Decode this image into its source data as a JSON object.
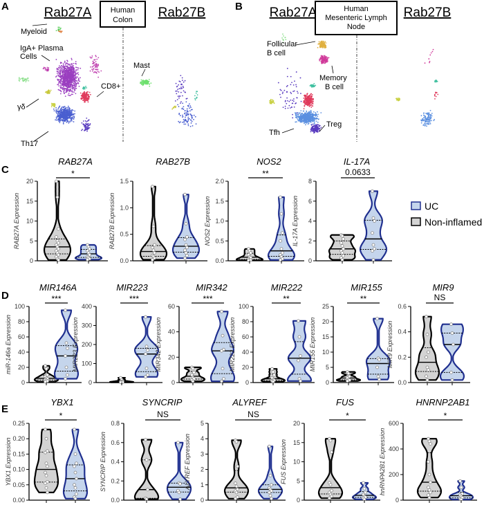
{
  "panel_labels": {
    "a": "A",
    "b": "B",
    "c": "C",
    "d": "D",
    "e": "E"
  },
  "umap": {
    "a": {
      "left_header": "Rab27A",
      "right_header": "Rab27B",
      "box_lines": [
        "Human",
        "Colon"
      ],
      "labels": {
        "myeloid": "Myeloid",
        "plasma_1": "IgA+ Plasma",
        "plasma_2": "Cells",
        "mast": "Mast",
        "cd8": "CD8+",
        "gd": "γδ",
        "th17": "Th17"
      }
    },
    "b": {
      "left_header": "Rab27A",
      "right_header": "Rab27B",
      "box_lines": [
        "Human",
        "Mesenteric Lymph",
        "Node"
      ],
      "labels": {
        "foll_1": "Follicular",
        "foll_2": "B cell",
        "mem_1": "Memory",
        "mem_2": "B cell",
        "tfh": "Tfh",
        "treg": "Treg"
      }
    },
    "cluster_colors": {
      "plasma": "#9b3fc0",
      "th17": "#4a5fd0",
      "cd8": "#e03a5c",
      "myeloid": "#5fcf5f",
      "myeloid_alt": "#e08040",
      "mast": "#6fe06f",
      "gd": "#c8c83a",
      "lightgreen": "#8ee08e",
      "darkpurple": "#5a3cc0",
      "magenta": "#c040b0",
      "teal": "#40c0a0",
      "orange": "#e0b040",
      "memory": "#d03a9a",
      "tfh": "#5a8fe0",
      "treg": "#5a3cc0",
      "yellow": "#c8d040"
    }
  },
  "legend": {
    "items": [
      {
        "label": "UC",
        "fill": "#c5d5ec",
        "stroke": "#1f2f8f"
      },
      {
        "label": "Non-inflamed",
        "fill": "#d3d3d3",
        "stroke": "#000000"
      }
    ]
  },
  "colors": {
    "non_inflamed_fill": "#d3d3d3",
    "non_inflamed_stroke": "#000000",
    "uc_fill": "#c5d5ec",
    "uc_stroke": "#1f2f8f"
  },
  "chart_data": [
    {
      "panel": "C",
      "type": "violin",
      "title": "RAB27A",
      "ylabel": "RAB27A Expression",
      "ylim": [
        0,
        20
      ],
      "ticks": [
        "0",
        "5",
        "10",
        "15",
        "20"
      ],
      "significance": "*",
      "groups": [
        {
          "name": "Non-inflamed",
          "points": [
            20,
            16,
            8,
            6,
            5,
            4.5,
            4,
            3.5,
            3,
            2.5,
            2,
            1.5,
            1,
            0.5,
            0.2
          ]
        },
        {
          "name": "UC",
          "points": [
            4,
            3.5,
            3,
            2.5,
            2,
            1.5,
            1,
            0.8,
            0.5,
            0.3
          ]
        }
      ]
    },
    {
      "panel": "C",
      "type": "violin",
      "title": "RAB27B",
      "ylabel": "RAB27B Expression",
      "ylim": [
        0,
        1.5
      ],
      "ticks": [
        "0.0",
        "0.5",
        "1.0",
        "1.5"
      ],
      "significance": "",
      "groups": [
        {
          "name": "Non-inflamed",
          "points": [
            1.4,
            0.65,
            0.3,
            0.25,
            0.2,
            0.15,
            0.1,
            0.08,
            0.05,
            0.02
          ]
        },
        {
          "name": "UC",
          "points": [
            1.25,
            0.7,
            0.45,
            0.4,
            0.3,
            0.25,
            0.2,
            0.15,
            0.1,
            0.05
          ]
        }
      ]
    },
    {
      "panel": "C",
      "type": "violin",
      "title": "NOS2",
      "ylabel": "NOS2 Expression",
      "ylim": [
        0,
        2
      ],
      "ticks": [
        "0.0",
        "0.5",
        "1.0",
        "1.5",
        "2.0"
      ],
      "significance": "**",
      "groups": [
        {
          "name": "Non-inflamed",
          "points": [
            0.3,
            0.25,
            0.2,
            0.15,
            0.1,
            0.08,
            0.05,
            0.03,
            0.02,
            0.01
          ]
        },
        {
          "name": "UC",
          "points": [
            1.6,
            1.18,
            0.7,
            0.5,
            0.3,
            0.2,
            0.15,
            0.1,
            0.05,
            0.02
          ]
        }
      ]
    },
    {
      "panel": "C",
      "type": "violin",
      "title": "IL-17A",
      "ylabel": "IL-17A Expression",
      "ylim": [
        0,
        8
      ],
      "ticks": [
        "0",
        "2",
        "4",
        "6",
        "8"
      ],
      "significance": "0.0633",
      "groups": [
        {
          "name": "Non-inflamed",
          "points": [
            2.6,
            2.5,
            2.2,
            1.8,
            1.5,
            1.2,
            1,
            0.8,
            0.5,
            0.3,
            0.1
          ]
        },
        {
          "name": "UC",
          "points": [
            7,
            4.3,
            4,
            2.8,
            1.6,
            1.2,
            1,
            0.1
          ]
        }
      ]
    },
    {
      "panel": "D",
      "type": "violin",
      "title": "MIR146A",
      "ylabel": "miR-146a Expression",
      "ylim": [
        0,
        100
      ],
      "ticks": [
        "0",
        "20",
        "40",
        "60",
        "80",
        "100"
      ],
      "significance": "***",
      "groups": [
        {
          "name": "Non-inflamed",
          "points": [
            22,
            18,
            10,
            8,
            6,
            5,
            4,
            3,
            2,
            1
          ]
        },
        {
          "name": "UC",
          "points": [
            95,
            52,
            45,
            35,
            20,
            10,
            5
          ]
        }
      ]
    },
    {
      "panel": "D",
      "type": "violin",
      "title": "MIR223",
      "ylabel": "MIR223 Expression",
      "ylim": [
        0,
        400
      ],
      "ticks": [
        "0",
        "100",
        "200",
        "300",
        "400"
      ],
      "significance": "***",
      "groups": [
        {
          "name": "Non-inflamed",
          "points": [
            25,
            15,
            8,
            5,
            3,
            2,
            1
          ]
        },
        {
          "name": "UC",
          "points": [
            345,
            190,
            170,
            150,
            75,
            40,
            30
          ]
        }
      ]
    },
    {
      "panel": "D",
      "type": "violin",
      "title": "MIR342",
      "ylabel": "MIR342 Expression",
      "ylim": [
        0,
        60
      ],
      "ticks": [
        "0",
        "20",
        "40",
        "60"
      ],
      "significance": "***",
      "groups": [
        {
          "name": "Non-inflamed",
          "points": [
            12,
            11,
            8,
            6,
            4,
            3,
            2,
            1
          ]
        },
        {
          "name": "UC",
          "points": [
            56,
            37,
            26,
            25,
            11,
            3,
            1
          ]
        }
      ]
    },
    {
      "panel": "D",
      "type": "violin",
      "title": "MIR222",
      "ylabel": "MIR222 Expression",
      "ylim": [
        0,
        100
      ],
      "ticks": [
        "0",
        "20",
        "40",
        "60",
        "80",
        "100"
      ],
      "significance": "**",
      "groups": [
        {
          "name": "Non-inflamed",
          "points": [
            18,
            14,
            10,
            6,
            4,
            3,
            2,
            1
          ]
        },
        {
          "name": "UC",
          "points": [
            81,
            60,
            35,
            29,
            5,
            2
          ]
        }
      ]
    },
    {
      "panel": "D",
      "type": "violin",
      "title": "MIR155",
      "ylabel": "MIR155 Expression",
      "ylim": [
        0,
        25
      ],
      "ticks": [
        "0",
        "5",
        "10",
        "15",
        "20",
        "25"
      ],
      "significance": "**",
      "groups": [
        {
          "name": "Non-inflamed",
          "points": [
            3.5,
            3,
            2,
            1.5,
            1,
            0.8,
            0.5
          ]
        },
        {
          "name": "UC",
          "points": [
            21,
            8,
            7.5,
            5,
            2,
            1
          ]
        }
      ]
    },
    {
      "panel": "D",
      "type": "violin",
      "title": "MIR9",
      "ylabel": "MIR9 Expression",
      "ylim": [
        0,
        0.6
      ],
      "ticks": [
        "0.0",
        "0.2",
        "0.4",
        "0.6"
      ],
      "significance": "NS",
      "groups": [
        {
          "name": "Non-inflamed",
          "points": [
            0.52,
            0.38,
            0.24,
            0.2,
            0.12,
            0.1,
            0.05,
            0.02
          ]
        },
        {
          "name": "UC",
          "points": [
            0.46,
            0.39,
            0.3,
            0.08,
            0.02
          ]
        }
      ]
    },
    {
      "panel": "E",
      "type": "violin",
      "title": "YBX1",
      "ylabel": "YBX1 Expression",
      "ylim": [
        0,
        0.25
      ],
      "ticks": [
        "0.00",
        "0.05",
        "0.10",
        "0.15",
        "0.20",
        "0.25"
      ],
      "significance": "*",
      "groups": [
        {
          "name": "Non-inflamed",
          "points": [
            0.23,
            0.2,
            0.16,
            0.155,
            0.12,
            0.11,
            0.09,
            0.08,
            0.06,
            0.055,
            0.04,
            0.025
          ]
        },
        {
          "name": "UC",
          "points": [
            0.23,
            0.15,
            0.12,
            0.11,
            0.09,
            0.07,
            0.05,
            0.04,
            0.02,
            0.01,
            0.005
          ]
        }
      ]
    },
    {
      "panel": "E",
      "type": "violin",
      "title": "SYNCRIP",
      "ylabel": "SYNCRIP Expression",
      "ylim": [
        0,
        0.8
      ],
      "ticks": [
        "0.0",
        "0.2",
        "0.4",
        "0.6",
        "0.8"
      ],
      "significance": "NS",
      "groups": [
        {
          "name": "Non-inflamed",
          "points": [
            0.63,
            0.42,
            0.11,
            0.02,
            0.01
          ]
        },
        {
          "name": "UC",
          "points": [
            0.6,
            0.18,
            0.17,
            0.1,
            0.08,
            0.01
          ]
        }
      ]
    },
    {
      "panel": "E",
      "type": "violin",
      "title": "ALYREF",
      "ylabel": "ALYREF Expression",
      "ylim": [
        0,
        5
      ],
      "ticks": [
        "0",
        "1",
        "2",
        "3",
        "4",
        "5"
      ],
      "significance": "NS",
      "groups": [
        {
          "name": "Non-inflamed",
          "points": [
            3.9,
            3.8,
            2.2,
            1.1,
            0.9,
            0.7,
            0.6,
            0.5,
            0.2,
            0.1
          ]
        },
        {
          "name": "UC",
          "points": [
            3.5,
            1.6,
            1,
            0.8,
            0.7,
            0.6,
            0.5,
            0.3,
            0.1
          ]
        }
      ]
    },
    {
      "panel": "E",
      "type": "violin",
      "title": "FUS",
      "ylabel": "FUS Expression",
      "ylim": [
        0,
        20
      ],
      "ticks": [
        "0",
        "5",
        "10",
        "15",
        "20"
      ],
      "significance": "*",
      "groups": [
        {
          "name": "Non-inflamed",
          "points": [
            16,
            15.5,
            12.5,
            4.5,
            4,
            2.5,
            2,
            1.5,
            1,
            0.5
          ]
        },
        {
          "name": "UC",
          "points": [
            4.5,
            3,
            2,
            1.5,
            1,
            0.8,
            0.5,
            0.2
          ]
        }
      ]
    },
    {
      "panel": "E",
      "type": "violin",
      "title": "HNRNP2AB1",
      "ylabel": "hnRNPA2B1 Expression",
      "ylim": [
        0,
        600
      ],
      "ticks": [
        "0",
        "200",
        "400",
        "600"
      ],
      "significance": "*",
      "groups": [
        {
          "name": "Non-inflamed",
          "points": [
            480,
            460,
            440,
            300,
            200,
            140,
            100,
            80,
            60,
            40,
            20
          ]
        },
        {
          "name": "UC",
          "points": [
            150,
            100,
            50,
            40,
            30,
            20,
            10,
            5
          ]
        }
      ]
    }
  ]
}
